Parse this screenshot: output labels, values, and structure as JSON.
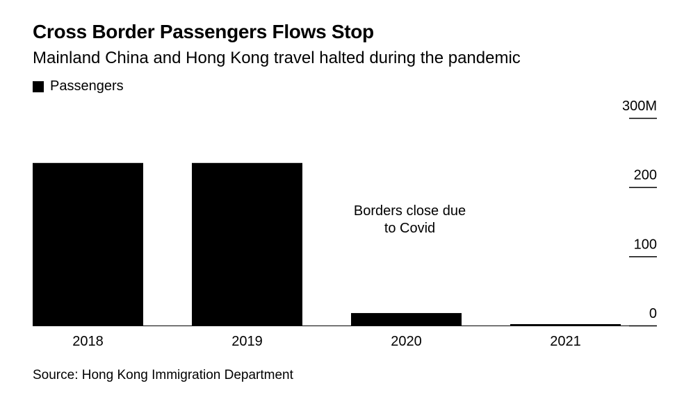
{
  "chart_data": {
    "type": "bar",
    "title": "Cross Border Passengers Flows Stop",
    "subtitle": "Mainland China and Hong Kong travel halted during the pandemic",
    "legend": [
      "Passengers"
    ],
    "legend_placement": "top-left",
    "categories": [
      "2018",
      "2019",
      "2020",
      "2021"
    ],
    "values": [
      235,
      235,
      18,
      1
    ],
    "ylim": [
      0,
      300
    ],
    "yticks": [
      0,
      100,
      200,
      300
    ],
    "ytick_labels": [
      "0",
      "100",
      "200",
      "300M"
    ],
    "y_axis_side": "right",
    "annotation": {
      "lines": [
        "Borders close due",
        "to Covid"
      ],
      "category": "2020"
    },
    "source": "Source: Hong Kong Immigration Department",
    "bar_color": "#000000"
  }
}
